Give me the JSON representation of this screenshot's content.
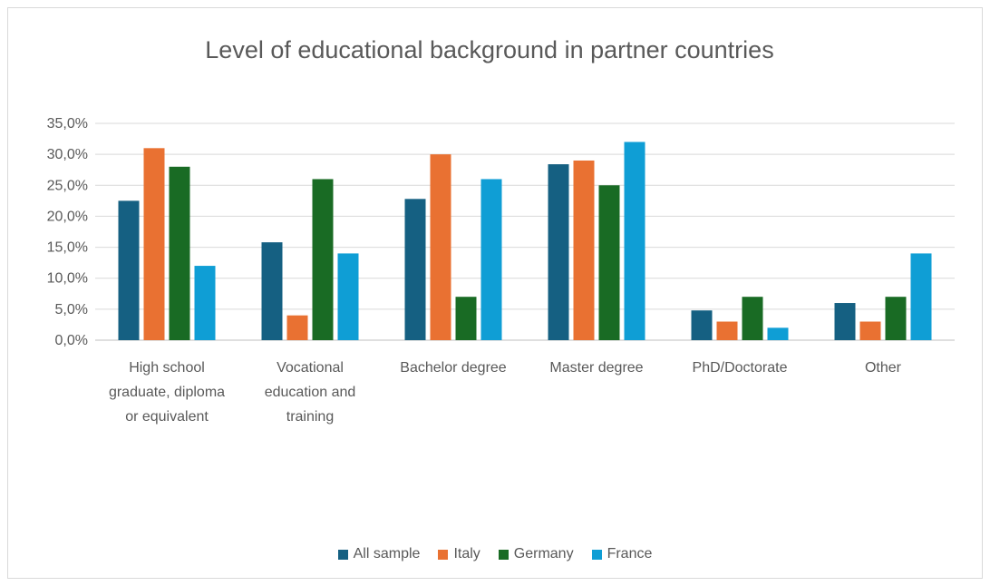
{
  "chart_data": {
    "type": "bar",
    "title": "Level of educational background in partner countries",
    "categories": [
      [
        "High school",
        "graduate, diploma",
        "or equivalent"
      ],
      [
        "Vocational",
        "education and",
        "training"
      ],
      [
        "Bachelor degree"
      ],
      [
        "Master degree"
      ],
      [
        "PhD/Doctorate"
      ],
      [
        "Other"
      ]
    ],
    "series": [
      {
        "name": "All sample",
        "color": "#156082",
        "values": [
          22.5,
          15.8,
          22.8,
          28.4,
          4.8,
          6.0
        ]
      },
      {
        "name": "Italy",
        "color": "#E97132",
        "values": [
          31.0,
          4.0,
          30.0,
          29.0,
          3.0,
          3.0
        ]
      },
      {
        "name": "Germany",
        "color": "#196B24",
        "values": [
          28.0,
          26.0,
          7.0,
          25.0,
          7.0,
          7.0
        ]
      },
      {
        "name": "France",
        "color": "#0F9ED5",
        "values": [
          12.0,
          14.0,
          26.0,
          32.0,
          2.0,
          14.0
        ]
      }
    ],
    "yticks": [
      "0,0%",
      "5,0%",
      "10,0%",
      "15,0%",
      "20,0%",
      "25,0%",
      "30,0%",
      "35,0%"
    ],
    "ylim": [
      0,
      35
    ],
    "grid": true,
    "legend_position": "bottom"
  }
}
